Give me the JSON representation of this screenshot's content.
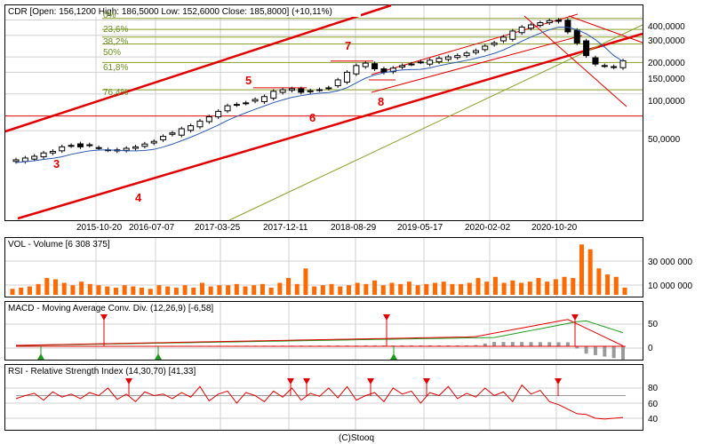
{
  "credit": "(C)Stooq",
  "colors": {
    "bg": "#ffffff",
    "frame": "#000000",
    "grid": "#d0d0d0",
    "red": "#e00000",
    "olive": "#8aa12a",
    "blue": "#2a5ab0",
    "orange": "#ff6a00",
    "gray": "#9a9a9a",
    "green": "#1e9a1e"
  },
  "chart_data": [
    {
      "type": "candlestick",
      "title": "CDR [Open: 156,1200  High: 186,5000  Low: 152,6000  Close: 185,8000]  (+10,11%)",
      "scale": "log",
      "yticks": [
        "400,0000",
        "300,0000",
        "200,0000",
        "150,0000",
        "100,0000",
        "50,0000"
      ],
      "xticks": [
        "2015-10-20",
        "2016-07-07",
        "2017-03-25",
        "2017-12-11",
        "2018-08-29",
        "2019-05-17",
        "2020-02-02",
        "2020-10-20"
      ],
      "fib_levels": [
        {
          "label": "0%",
          "value": 412
        },
        {
          "label": "23,6%",
          "value": 335
        },
        {
          "label": "38,2%",
          "value": 290
        },
        {
          "label": "50%",
          "value": 255
        },
        {
          "label": "61,8%",
          "value": 180
        },
        {
          "label": "76,4%",
          "value": 108
        }
      ],
      "horizontal_line": 66,
      "wave_labels": [
        "3",
        "4",
        "5",
        "6",
        "7",
        "8"
      ],
      "closes": [
        29,
        30,
        31,
        33,
        34,
        37,
        38,
        37,
        38,
        36,
        35,
        35,
        36,
        37,
        39,
        41,
        45,
        48,
        52,
        55,
        60,
        65,
        72,
        80,
        82,
        84,
        90,
        95,
        105,
        108,
        110,
        103,
        106,
        108,
        112,
        130,
        150,
        170,
        178,
        160,
        150,
        162,
        170,
        175,
        182,
        188,
        195,
        200,
        205,
        215,
        225,
        245,
        260,
        290,
        325,
        350,
        365,
        380,
        395,
        390,
        320,
        260,
        205,
        175,
        170,
        165,
        186
      ]
    },
    {
      "type": "bar",
      "title": "VOL - Volume [6 308 375]",
      "yticks": [
        "30 000 000",
        "10 000 000"
      ],
      "values": [
        5,
        6,
        7,
        9,
        14,
        13,
        10,
        8,
        11,
        9,
        8,
        7,
        6,
        8,
        7,
        6,
        5,
        8,
        7,
        6,
        8,
        6,
        10,
        7,
        8,
        8,
        9,
        7,
        8,
        9,
        6,
        10,
        14,
        9,
        22,
        7,
        8,
        9,
        7,
        8,
        10,
        9,
        12,
        8,
        10,
        9,
        11,
        8,
        9,
        10,
        11,
        9,
        9,
        10,
        14,
        11,
        15,
        10,
        12,
        10,
        11,
        14,
        11,
        13,
        15,
        14,
        42,
        38,
        22,
        17,
        15,
        6
      ]
    },
    {
      "type": "line",
      "title": "MACD - Moving Average Conv. Div. (12,26,9) [-6,58]",
      "yticks": [
        "50",
        "0"
      ]
    },
    {
      "type": "line",
      "title": "RSI - Relative Strength Index (14,30,70) [41,33]",
      "yticks": [
        "80",
        "60",
        "40"
      ],
      "reference": 70,
      "values": [
        66,
        70,
        73,
        64,
        75,
        68,
        72,
        66,
        74,
        70,
        80,
        65,
        72,
        62,
        75,
        70,
        72,
        66,
        74,
        68,
        82,
        63,
        72,
        76,
        60,
        74,
        70,
        62,
        76,
        68,
        80,
        64,
        73,
        69,
        80,
        67,
        82,
        64,
        70,
        74,
        62,
        80,
        72,
        76,
        60,
        74,
        70,
        82,
        66,
        73,
        68,
        80,
        70,
        75,
        62,
        84,
        72,
        77,
        62,
        58,
        52,
        46,
        45,
        40,
        39,
        40,
        41
      ]
    }
  ]
}
